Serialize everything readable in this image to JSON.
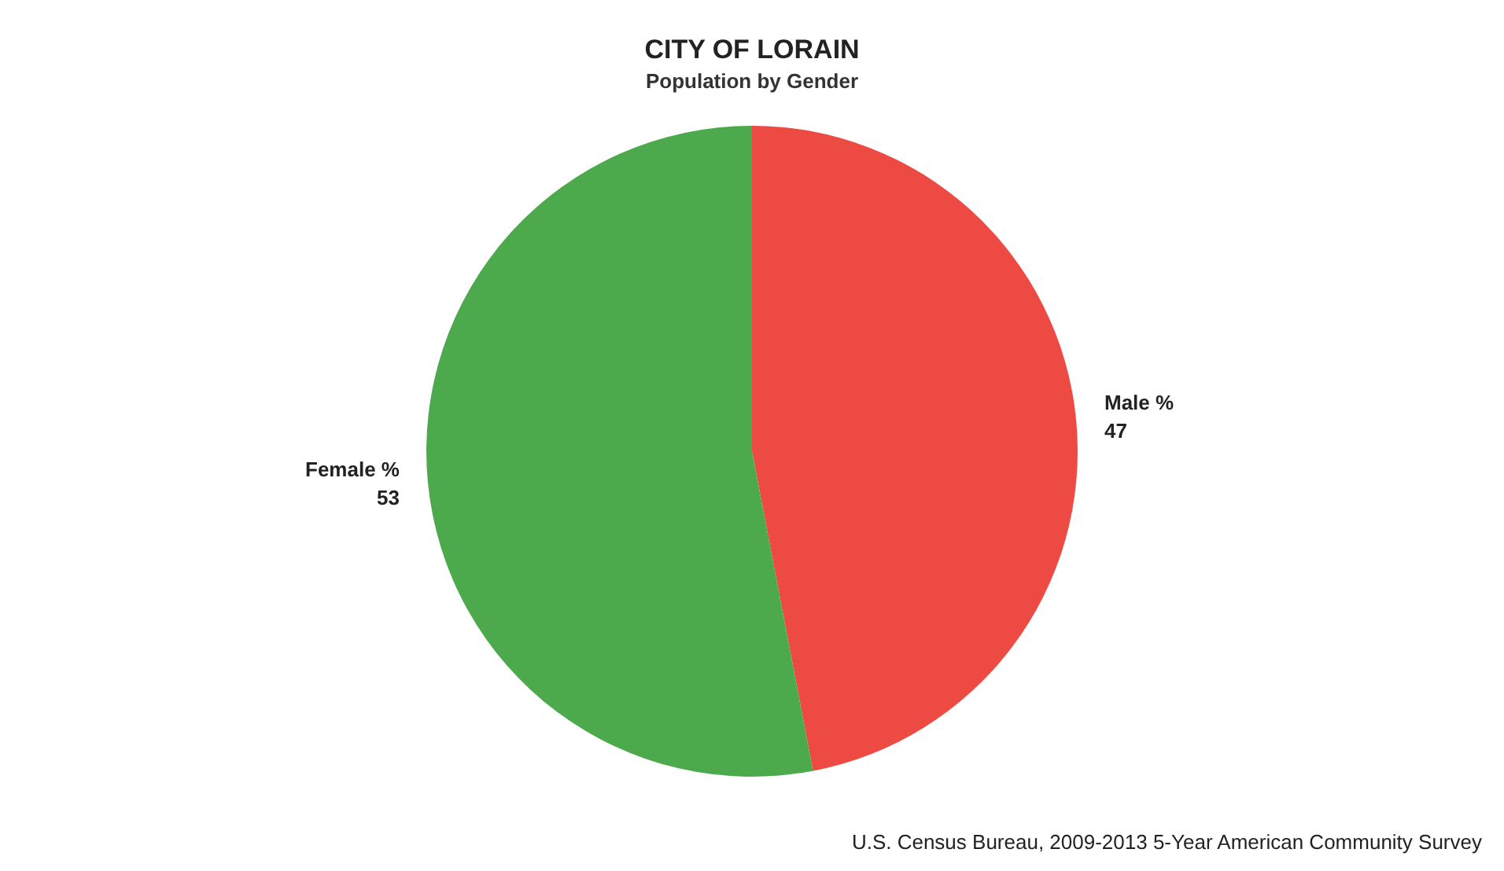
{
  "chart_data": {
    "type": "pie",
    "title": "CITY OF LORAIN",
    "subtitle": "Population by Gender",
    "categories": [
      "Male %",
      "Female %"
    ],
    "values": [
      47,
      53
    ],
    "colors": [
      "#ee4a44",
      "#4caa4c"
    ],
    "data_labels": true,
    "legend": false,
    "annotations": [
      "U.S. Census Bureau, 2009-2013 5-Year American Community Survey"
    ]
  }
}
